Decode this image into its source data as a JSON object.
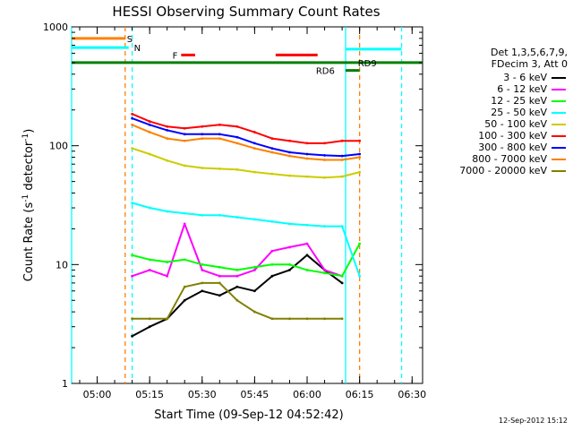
{
  "chart_data": {
    "type": "line",
    "title": "HESSI Observing Summary Count Rates",
    "xlabel": "Start Time (09-Sep-12 04:52:42)",
    "ylabel_prefix": "Count Rate (s",
    "ylabel_sup": "-1",
    "ylabel_suffix": " detector",
    "ylabel_sup2": "-1",
    "ylabel_close": ")",
    "y_scale": "log",
    "ylim": [
      1,
      1000
    ],
    "xlim": [
      "04:52:42",
      "06:33:00"
    ],
    "y_ticks": [
      "1",
      "10",
      "100",
      "1000"
    ],
    "x_ticks": [
      "05:00",
      "05:15",
      "05:30",
      "05:45",
      "06:00",
      "06:15",
      "06:30"
    ],
    "legend_header": [
      "Det 1,3,5,6,7,9,",
      "FDecim 3, Att 0"
    ],
    "series": [
      {
        "name": "3 - 6 keV",
        "color": "#000000",
        "x": [
          "05:10",
          "05:15",
          "05:20",
          "05:25",
          "05:30",
          "05:35",
          "05:40",
          "05:45",
          "05:50",
          "05:55",
          "06:00",
          "06:05",
          "06:10"
        ],
        "values": [
          2.5,
          3.0,
          3.5,
          5.0,
          6.0,
          5.5,
          6.5,
          6.0,
          8.0,
          9.0,
          12.0,
          9.0,
          7.0
        ]
      },
      {
        "name": "6 - 12 keV",
        "color": "#ff00ff",
        "x": [
          "05:10",
          "05:15",
          "05:20",
          "05:25",
          "05:30",
          "05:35",
          "05:40",
          "05:45",
          "05:50",
          "05:55",
          "06:00",
          "06:05",
          "06:10"
        ],
        "values": [
          8.0,
          9.0,
          8.0,
          22.0,
          9.0,
          8.0,
          8.0,
          9.0,
          13.0,
          14.0,
          15.0,
          9.0,
          8.0
        ]
      },
      {
        "name": "12 - 25 keV",
        "color": "#00ff00",
        "x": [
          "05:10",
          "05:15",
          "05:20",
          "05:25",
          "05:30",
          "05:35",
          "05:40",
          "05:45",
          "05:50",
          "05:55",
          "06:00",
          "06:05",
          "06:10",
          "06:15"
        ],
        "values": [
          12.0,
          11.0,
          10.5,
          11.0,
          10.0,
          9.5,
          9.0,
          9.5,
          10.0,
          10.0,
          9.0,
          8.5,
          8.0,
          15.0
        ]
      },
      {
        "name": "25 - 50 keV",
        "color": "#00ffff",
        "x": [
          "05:10",
          "05:15",
          "05:20",
          "05:25",
          "05:30",
          "05:35",
          "05:40",
          "05:45",
          "05:50",
          "05:55",
          "06:00",
          "06:05",
          "06:10",
          "06:15"
        ],
        "values": [
          33.0,
          30.0,
          28.0,
          27.0,
          26.0,
          26.0,
          25.0,
          24.0,
          23.0,
          22.0,
          21.5,
          21.0,
          21.0,
          8.0
        ]
      },
      {
        "name": "50 - 100 keV",
        "color": "#cccc00",
        "x": [
          "05:10",
          "05:15",
          "05:20",
          "05:25",
          "05:30",
          "05:35",
          "05:40",
          "05:45",
          "05:50",
          "05:55",
          "06:00",
          "06:05",
          "06:10",
          "06:15"
        ],
        "values": [
          95.0,
          85.0,
          75.0,
          68.0,
          65.0,
          64.0,
          63.0,
          60.0,
          58.0,
          56.0,
          55.0,
          54.0,
          55.0,
          60.0
        ]
      },
      {
        "name": "100 - 300 keV",
        "color": "#ff0000",
        "x": [
          "05:10",
          "05:15",
          "05:20",
          "05:25",
          "05:30",
          "05:35",
          "05:40",
          "05:45",
          "05:50",
          "05:55",
          "06:00",
          "06:05",
          "06:10",
          "06:15"
        ],
        "values": [
          185.0,
          160.0,
          145.0,
          140.0,
          145.0,
          150.0,
          145.0,
          130.0,
          115.0,
          110.0,
          105.0,
          105.0,
          110.0,
          110.0
        ]
      },
      {
        "name": "300 - 800 keV",
        "color": "#0000ff",
        "x": [
          "05:10",
          "05:15",
          "05:20",
          "05:25",
          "05:30",
          "05:35",
          "05:40",
          "05:45",
          "05:50",
          "05:55",
          "06:00",
          "06:05",
          "06:10",
          "06:15"
        ],
        "values": [
          170.0,
          150.0,
          135.0,
          125.0,
          125.0,
          125.0,
          118.0,
          105.0,
          95.0,
          88.0,
          85.0,
          83.0,
          82.0,
          85.0
        ]
      },
      {
        "name": "800 - 7000 keV",
        "color": "#ff8000",
        "x": [
          "05:10",
          "05:15",
          "05:20",
          "05:25",
          "05:30",
          "05:35",
          "05:40",
          "05:45",
          "05:50",
          "05:55",
          "06:00",
          "06:05",
          "06:10",
          "06:15"
        ],
        "values": [
          150.0,
          130.0,
          115.0,
          110.0,
          115.0,
          115.0,
          105.0,
          95.0,
          88.0,
          82.0,
          78.0,
          76.0,
          76.0,
          80.0
        ]
      },
      {
        "name": "7000 - 20000 keV",
        "color": "#808000",
        "x": [
          "05:10",
          "05:15",
          "05:20",
          "05:25",
          "05:30",
          "05:35",
          "05:40",
          "05:45",
          "05:50",
          "05:55",
          "06:00",
          "06:05",
          "06:10"
        ],
        "values": [
          3.5,
          3.5,
          3.5,
          6.5,
          7.0,
          7.0,
          5.0,
          4.0,
          3.5,
          3.5,
          3.5,
          3.5,
          3.5
        ]
      }
    ],
    "annotations": [
      {
        "text": "S",
        "color": "#ff8000",
        "level": 800,
        "x_start": "04:52:42",
        "x_end": "05:08",
        "label_x": "05:08"
      },
      {
        "text": "N",
        "color": "#00ffff",
        "level": 670,
        "x_start": "04:52:42",
        "x_end": "05:09",
        "label_x": "05:10"
      },
      {
        "text": "F",
        "color": "#ff0000",
        "level": 580,
        "x_start": "05:24",
        "x_end": "05:28",
        "label_x": "05:21"
      },
      {
        "text": "",
        "color": "#ff0000",
        "level": 580,
        "x_start": "05:51",
        "x_end": "06:03"
      },
      {
        "text": "RD6",
        "color": "#008000",
        "level": 430,
        "x_start": "06:11",
        "x_end": "06:15",
        "label_x": "06:02"
      },
      {
        "text": "RD9",
        "color": "#008000",
        "level": 500,
        "x_start": "04:52:42",
        "x_end": "06:33:00",
        "label_x": "06:14"
      }
    ],
    "vertical_lines": [
      {
        "x": "04:52:42",
        "color": "#00ffff",
        "style": "solid"
      },
      {
        "x": "05:08",
        "color": "#ff8000",
        "style": "dashed"
      },
      {
        "x": "05:10",
        "color": "#00ffff",
        "style": "dashed"
      },
      {
        "x": "06:11",
        "color": "#00ffff",
        "style": "solid"
      },
      {
        "x": "06:15",
        "color": "#ff8000",
        "style": "dashed"
      },
      {
        "x": "06:27",
        "color": "#00ffff",
        "style": "dashed"
      }
    ],
    "segments": [
      {
        "color": "#00ffff",
        "level": 650,
        "x_start": "06:11",
        "x_end": "06:27"
      }
    ],
    "timestamp": "12-Sep-2012 15:12"
  }
}
